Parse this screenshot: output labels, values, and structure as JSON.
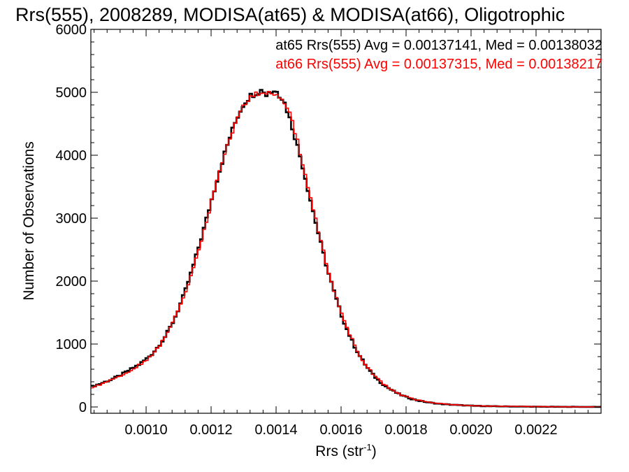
{
  "chart_data": {
    "type": "line",
    "title": "Rrs(555), 2008289, MODISA(at65) & MODISA(at66), Oligotrophic",
    "xlabel": "Rrs (str",
    "xlabel_sup": "-1",
    "xlabel_close": ")",
    "ylabel": "Number of Observations",
    "xlim": [
      0.00083,
      0.0024
    ],
    "ylim": [
      0,
      6000
    ],
    "x_ticks": [
      "0.0010",
      "0.0012",
      "0.0014",
      "0.0016",
      "0.0018",
      "0.0020",
      "0.0022"
    ],
    "y_ticks": [
      "0",
      "1000",
      "2000",
      "3000",
      "4000",
      "5000",
      "6000"
    ],
    "legend_position": "top-right",
    "annotations": [
      {
        "text": "at65 Rrs(555) Avg = 0.00137141, Med = 0.00138032",
        "color": "#000000"
      },
      {
        "text": "at66 Rrs(555) Avg = 0.00137315, Med = 0.00138217",
        "color": "#ff0000"
      }
    ],
    "series": [
      {
        "color": "#000000",
        "x": [
          0.00083,
          0.00086,
          0.00089,
          0.00092,
          0.00095,
          0.00098,
          0.001,
          0.00102,
          0.00104,
          0.00106,
          0.00108,
          0.0011,
          0.00112,
          0.00114,
          0.00116,
          0.00118,
          0.0012,
          0.00122,
          0.00124,
          0.00126,
          0.00128,
          0.0013,
          0.00132,
          0.00134,
          0.00136,
          0.00137,
          0.00138,
          0.00139,
          0.0014,
          0.00141,
          0.00142,
          0.00143,
          0.00144,
          0.00146,
          0.00148,
          0.0015,
          0.00152,
          0.00154,
          0.00156,
          0.00158,
          0.0016,
          0.00162,
          0.00164,
          0.00166,
          0.00168,
          0.0017,
          0.00172,
          0.00174,
          0.00176,
          0.00178,
          0.0018,
          0.00182,
          0.00184,
          0.00186,
          0.00188,
          0.0019,
          0.00192,
          0.00194,
          0.00196,
          0.00198,
          0.002,
          0.00202,
          0.00204,
          0.00206,
          0.00208,
          0.0021,
          0.00212,
          0.00214,
          0.00216,
          0.00218,
          0.0022,
          0.00222,
          0.00224,
          0.00226,
          0.00228,
          0.0023,
          0.00232,
          0.00234,
          0.00236,
          0.00238,
          0.0024
        ],
        "values": [
          320,
          370,
          430,
          500,
          590,
          680,
          760,
          850,
          980,
          1130,
          1320,
          1560,
          1830,
          2150,
          2500,
          2870,
          3260,
          3650,
          4000,
          4320,
          4600,
          4820,
          4940,
          5000,
          5040,
          4950,
          5040,
          4980,
          5060,
          4960,
          4900,
          4780,
          4620,
          4260,
          3870,
          3420,
          2980,
          2550,
          2150,
          1800,
          1480,
          1210,
          980,
          790,
          630,
          500,
          400,
          320,
          255,
          200,
          160,
          125,
          100,
          80,
          65,
          52,
          43,
          36,
          30,
          25,
          20,
          17,
          14,
          12,
          10,
          9,
          8,
          7,
          6,
          5,
          4,
          4,
          3,
          3,
          2,
          2,
          2,
          1,
          1,
          1,
          1
        ]
      },
      {
        "color": "#ff0000",
        "x": [
          0.00083,
          0.00086,
          0.00089,
          0.00092,
          0.00095,
          0.00098,
          0.001,
          0.00102,
          0.00104,
          0.00106,
          0.00108,
          0.0011,
          0.00112,
          0.00114,
          0.00116,
          0.00118,
          0.0012,
          0.00122,
          0.00124,
          0.00126,
          0.00128,
          0.0013,
          0.00132,
          0.00134,
          0.00136,
          0.00137,
          0.00138,
          0.00139,
          0.0014,
          0.00141,
          0.00142,
          0.00143,
          0.00144,
          0.00146,
          0.00148,
          0.0015,
          0.00152,
          0.00154,
          0.00156,
          0.00158,
          0.0016,
          0.00162,
          0.00164,
          0.00166,
          0.00168,
          0.0017,
          0.00172,
          0.00174,
          0.00176,
          0.00178,
          0.0018,
          0.00182,
          0.00184,
          0.00186,
          0.00188,
          0.0019,
          0.00192,
          0.00194,
          0.00196,
          0.00198,
          0.002,
          0.00202,
          0.00204,
          0.00206,
          0.00208,
          0.0021,
          0.00212,
          0.00214,
          0.00216,
          0.00218,
          0.0022,
          0.00222,
          0.00224,
          0.00226,
          0.00228,
          0.0023,
          0.00232,
          0.00234,
          0.00236,
          0.00238,
          0.0024
        ],
        "values": [
          300,
          360,
          420,
          490,
          580,
          670,
          750,
          840,
          970,
          1120,
          1310,
          1540,
          1810,
          2120,
          2470,
          2840,
          3230,
          3620,
          3980,
          4300,
          4580,
          4790,
          4910,
          4970,
          4980,
          4930,
          4990,
          4920,
          4940,
          4900,
          4870,
          4800,
          4700,
          4330,
          3930,
          3480,
          3030,
          2590,
          2180,
          1820,
          1500,
          1230,
          1000,
          800,
          640,
          510,
          410,
          330,
          260,
          205,
          165,
          130,
          105,
          85,
          68,
          56,
          46,
          38,
          32,
          27,
          22,
          19,
          16,
          14,
          12,
          11,
          10,
          9,
          8,
          7,
          6,
          5,
          5,
          4,
          4,
          3,
          3,
          2,
          2,
          2,
          2
        ]
      }
    ]
  }
}
